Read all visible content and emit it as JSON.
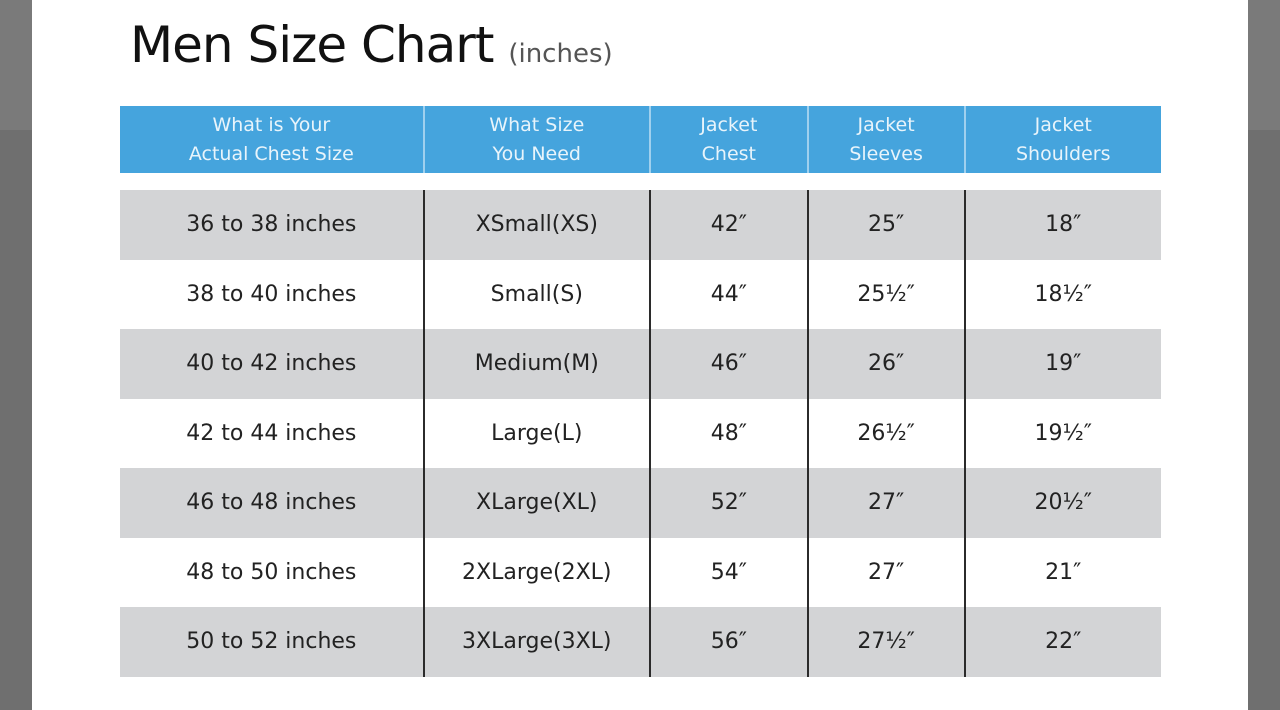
{
  "title": "Men Size Chart",
  "title_unit": "(inches)",
  "columns": [
    "What is Your\nActual Chest Size",
    "What Size\nYou Need",
    "Jacket\nChest",
    "Jacket\nSleeves",
    "Jacket\nShoulders"
  ],
  "rows": [
    [
      "36 to 38 inches",
      "XSmall(XS)",
      "42″",
      "25″",
      "18″"
    ],
    [
      "38 to 40 inches",
      "Small(S)",
      "44″",
      "25½″",
      "18½″"
    ],
    [
      "40 to 42 inches",
      "Medium(M)",
      "46″",
      "26″",
      "19″"
    ],
    [
      "42 to 44 inches",
      "Large(L)",
      "48″",
      "26½″",
      "19½″"
    ],
    [
      "46 to 48 inches",
      "XLarge(XL)",
      "52″",
      "27″",
      "20½″"
    ],
    [
      "48 to 50 inches",
      "2XLarge(2XL)",
      "54″",
      "27″",
      "21″"
    ],
    [
      "50 to 52 inches",
      "3XLarge(3XL)",
      "56″",
      "27½″",
      "22″"
    ]
  ],
  "colors": {
    "header": "#45a4dd",
    "alt_row": "#d3d4d6",
    "backdrop": "#6f6f6f"
  }
}
